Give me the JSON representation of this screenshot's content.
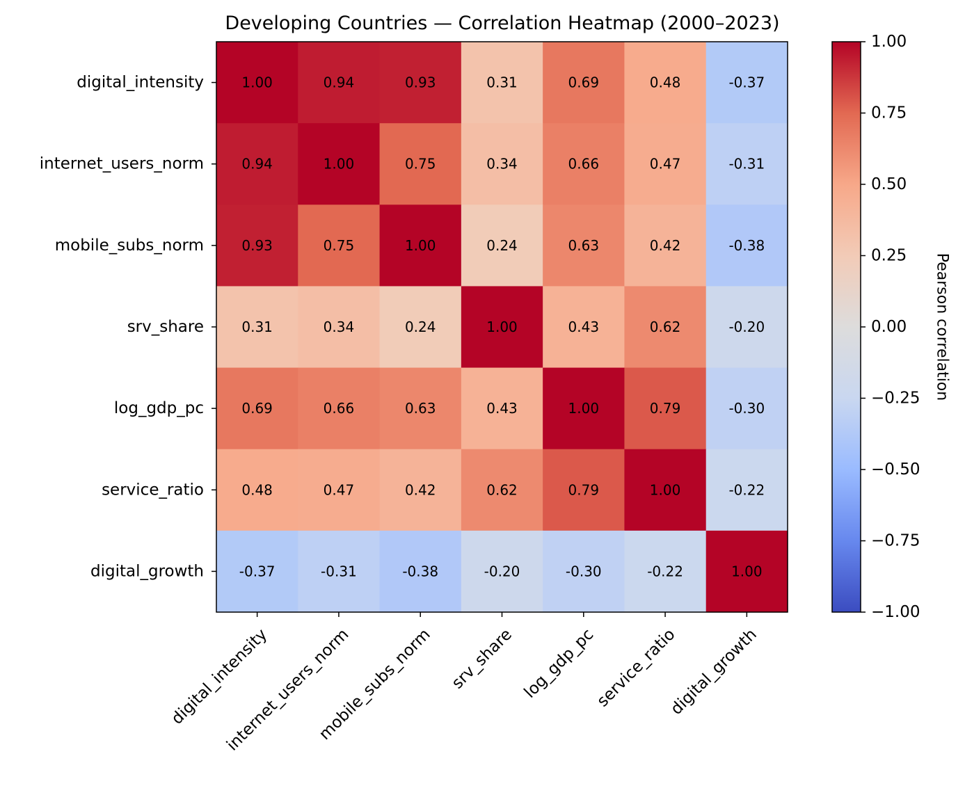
{
  "chart_data": {
    "type": "heatmap",
    "title": "Developing Countries — Correlation Heatmap (2000–2023)",
    "x_categories": [
      "digital_intensity",
      "internet_users_norm",
      "mobile_subs_norm",
      "srv_share",
      "log_gdp_pc",
      "service_ratio",
      "digital_growth"
    ],
    "y_categories": [
      "digital_intensity",
      "internet_users_norm",
      "mobile_subs_norm",
      "srv_share",
      "log_gdp_pc",
      "service_ratio",
      "digital_growth"
    ],
    "values": [
      [
        1.0,
        0.94,
        0.93,
        0.31,
        0.69,
        0.48,
        -0.37
      ],
      [
        0.94,
        1.0,
        0.75,
        0.34,
        0.66,
        0.47,
        -0.31
      ],
      [
        0.93,
        0.75,
        1.0,
        0.24,
        0.63,
        0.42,
        -0.38
      ],
      [
        0.31,
        0.34,
        0.24,
        1.0,
        0.43,
        0.62,
        -0.2
      ],
      [
        0.69,
        0.66,
        0.63,
        0.43,
        1.0,
        0.79,
        -0.3
      ],
      [
        0.48,
        0.47,
        0.42,
        0.62,
        0.79,
        1.0,
        -0.22
      ],
      [
        -0.37,
        -0.31,
        -0.38,
        -0.2,
        -0.3,
        -0.22,
        1.0
      ]
    ],
    "colorbar": {
      "label": "Pearson correlation",
      "range": [
        -1.0,
        1.0
      ],
      "ticks": [
        -1.0,
        -0.75,
        -0.5,
        -0.25,
        0.0,
        0.25,
        0.5,
        0.75,
        1.0
      ],
      "tick_labels": [
        "−1.00",
        "−0.75",
        "−0.50",
        "−0.25",
        "0.00",
        "0.25",
        "0.50",
        "0.75",
        "1.00"
      ],
      "colormap": "coolwarm",
      "colormap_stops": [
        "#3b4cc0",
        "#6788ee",
        "#9abbff",
        "#c9d7f0",
        "#dddcdc",
        "#f2cbb7",
        "#f7a889",
        "#e26952",
        "#b40426"
      ]
    }
  }
}
